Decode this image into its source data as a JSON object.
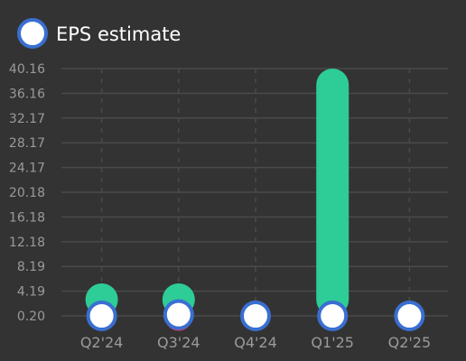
{
  "chart_data": {
    "type": "bar",
    "categories": [
      "Q2'24",
      "Q3'24",
      "Q4'24",
      "Q1'25",
      "Q2'25"
    ],
    "y_ticks": [
      "0.20",
      "4.19",
      "8.19",
      "12.18",
      "16.18",
      "20.18",
      "24.17",
      "28.17",
      "32.17",
      "36.16",
      "40.16"
    ],
    "ylim": [
      0.2,
      40.16
    ],
    "series": [
      {
        "type": "bar",
        "values": [
          1.2,
          0.5,
          null,
          40.16,
          null
        ],
        "color": "#2ecc96",
        "negative_color": "#cc3e6b"
      },
      {
        "name": "EPS estimate",
        "type": "scatter",
        "values": [
          0.2,
          0.4,
          0.2,
          0.2,
          0.2
        ],
        "color": "#ffffff",
        "edge_color": "#3a6fd1"
      }
    ],
    "legend": {
      "position": "top-left",
      "label": "EPS estimate"
    },
    "grid": true,
    "colors": {
      "background": "#333333",
      "grid": "#4a4a4a",
      "tick_text": "#9a9a9a"
    }
  }
}
